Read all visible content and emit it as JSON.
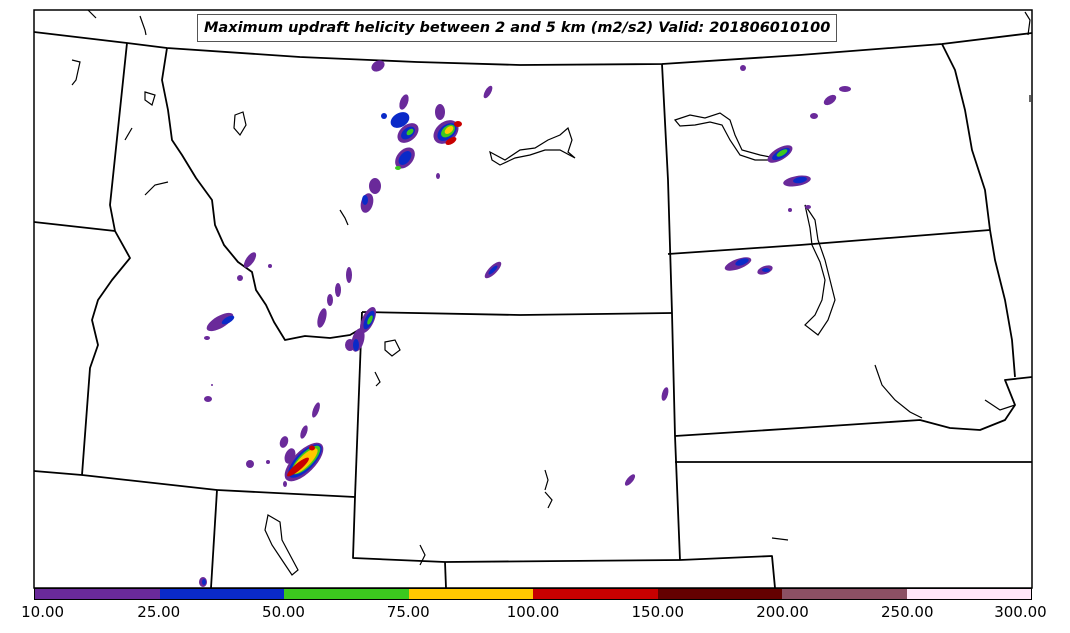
{
  "title": "Maximum updraft helicity between 2 and 5 km (m2/s2) Valid: 201806010100",
  "colorbar": {
    "labels": [
      "10.00",
      "25.00",
      "50.00",
      "75.00",
      "100.00",
      "150.00",
      "200.00",
      "250.00",
      "300.00"
    ],
    "colors": [
      "#6a2a9a",
      "#0a2ac8",
      "#3cc81e",
      "#ffc800",
      "#c80000",
      "#640000",
      "#8c5064",
      "#ffe6f8"
    ]
  },
  "map": {
    "border_color": "#000000",
    "helicity_level_colors": {
      "level_10": "#6a2a9a",
      "level_25": "#0a2ac8",
      "level_50": "#3cc81e",
      "level_75": "#ffc800",
      "level_100": "#c80000"
    }
  }
}
